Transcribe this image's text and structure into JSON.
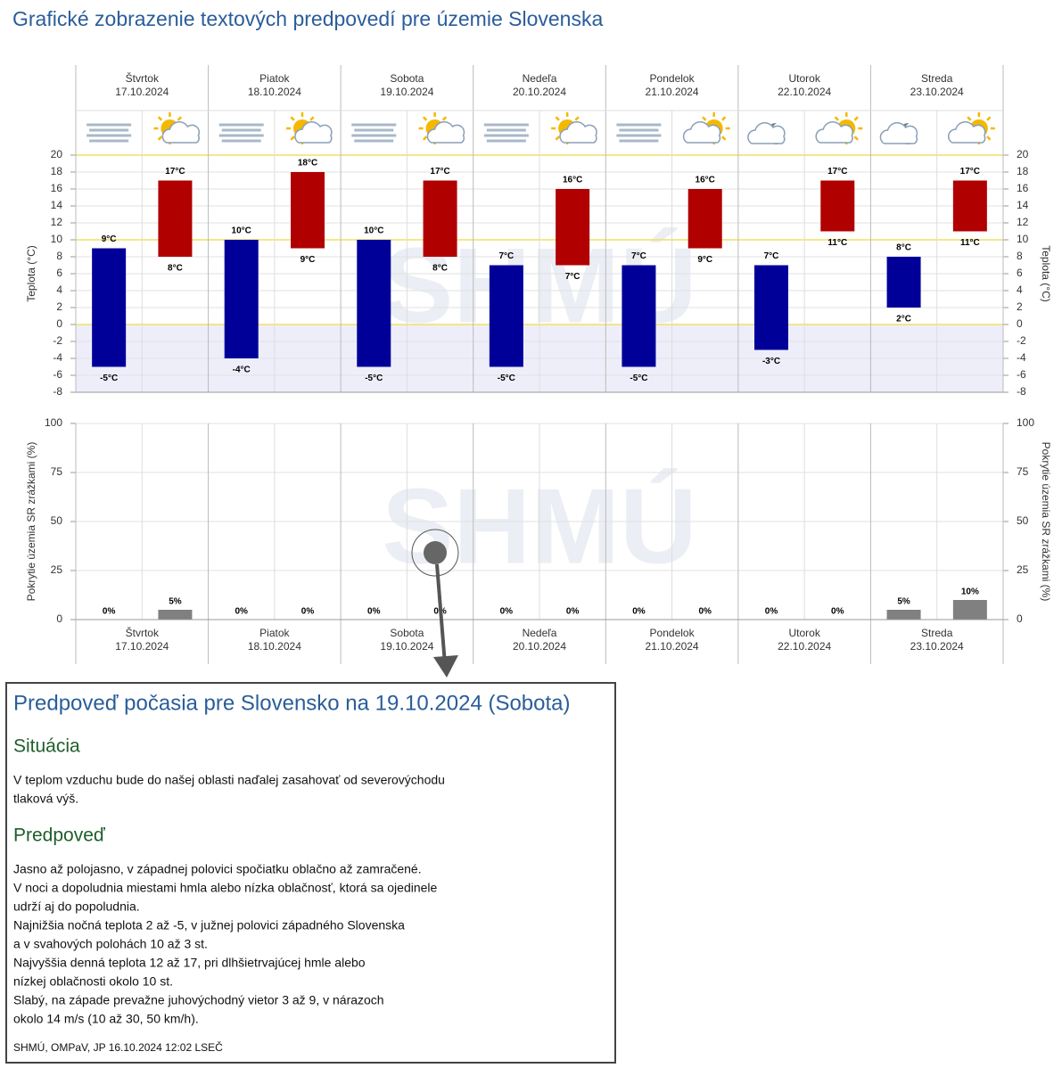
{
  "title": "Grafické zobrazenie textových predpovedí pre územie Slovenska",
  "watermark": "SHMÚ",
  "chart_data": [
    {
      "type": "range-bar",
      "categories": [
        "Štvrtok",
        "Piatok",
        "Sobota",
        "Nedeľa",
        "Pondelok",
        "Utorok",
        "Streda"
      ],
      "dates": [
        "17.10.2024",
        "18.10.2024",
        "19.10.2024",
        "20.10.2024",
        "21.10.2024",
        "22.10.2024",
        "23.10.2024"
      ],
      "ylabel": "Teplota (°C)",
      "ylim": [
        -8,
        20
      ],
      "yticks": [
        -8,
        -6,
        -4,
        -2,
        0,
        2,
        4,
        6,
        8,
        10,
        12,
        14,
        16,
        18,
        20
      ],
      "reference_lines": [
        0,
        10,
        20
      ],
      "series": [
        {
          "color": "#000099",
          "low": [
            -5,
            -4,
            -5,
            -5,
            -5,
            -3,
            2
          ],
          "high": [
            9,
            10,
            10,
            7,
            7,
            7,
            8
          ],
          "low_labels": [
            "-5°C",
            "-4°C",
            "-5°C",
            "-5°C",
            "-5°C",
            "-3°C",
            "2°C"
          ],
          "high_labels": [
            "9°C",
            "10°C",
            "10°C",
            "7°C",
            "7°C",
            "7°C",
            "8°C"
          ]
        },
        {
          "color": "#b00000",
          "low": [
            8,
            9,
            8,
            7,
            9,
            11,
            11
          ],
          "high": [
            17,
            18,
            17,
            16,
            16,
            17,
            17
          ],
          "low_labels": [
            "8°C",
            "9°C",
            "8°C",
            "7°C",
            "9°C",
            "11°C",
            "11°C"
          ],
          "high_labels": [
            "17°C",
            "18°C",
            "17°C",
            "16°C",
            "16°C",
            "17°C",
            "17°C"
          ]
        }
      ]
    },
    {
      "type": "bar",
      "categories": [
        "Štvrtok",
        "Piatok",
        "Sobota",
        "Nedeľa",
        "Pondelok",
        "Utorok",
        "Streda"
      ],
      "dates": [
        "17.10.2024",
        "18.10.2024",
        "19.10.2024",
        "20.10.2024",
        "21.10.2024",
        "22.10.2024",
        "23.10.2024"
      ],
      "ylabel": "Pokrytie územia SR zrážkami (%)",
      "ylim": [
        0,
        100
      ],
      "yticks": [
        0,
        25,
        50,
        75,
        100
      ],
      "series": [
        {
          "color": "#808080",
          "values": [
            0,
            0,
            0,
            0,
            0,
            0,
            5
          ],
          "value_labels": [
            "0%",
            "0%",
            "0%",
            "0%",
            "0%",
            "0%",
            "5%"
          ]
        },
        {
          "color": "#808080",
          "values": [
            5,
            0,
            0,
            0,
            0,
            0,
            10
          ],
          "value_labels": [
            "5%",
            "0%",
            "0%",
            "0%",
            "0%",
            "0%",
            "10%"
          ]
        }
      ]
    }
  ],
  "forecast": {
    "title": "Predpoveď počasia pre Slovensko na 19.10.2024 (Sobota)",
    "sections": [
      {
        "heading": "Situácia",
        "lines": [
          "V teplom vzduchu bude do našej oblasti naďalej zasahovať od severovýchodu",
          "tlaková výš."
        ]
      },
      {
        "heading": "Predpoveď",
        "lines": [
          "Jasno až polojasno, v západnej polovici spočiatku oblačno až zamračené.",
          "V noci a dopoludnia miestami hmla alebo nízka oblačnosť, ktorá sa ojedinele",
          "udrží aj do popoludnia.",
          "Najnižšia nočná teplota 2 až -5, v južnej polovici západného Slovenska",
          "a v svahových polohách 10 až 3 st.",
          "Najvyššia denná teplota 12 až 17, pri dlhšietrvajúcej hmle alebo",
          "nízkej oblačnosti okolo 10 st.",
          "Slabý, na západe prevažne juhovýchodný vietor 3 až 9, v nárazoch",
          "okolo 14 m/s (10 až 30, 50 km/h)."
        ]
      }
    ],
    "footer": "SHMÚ, OMPaV, JP 16.10.2024 12:02 LSEČ"
  }
}
